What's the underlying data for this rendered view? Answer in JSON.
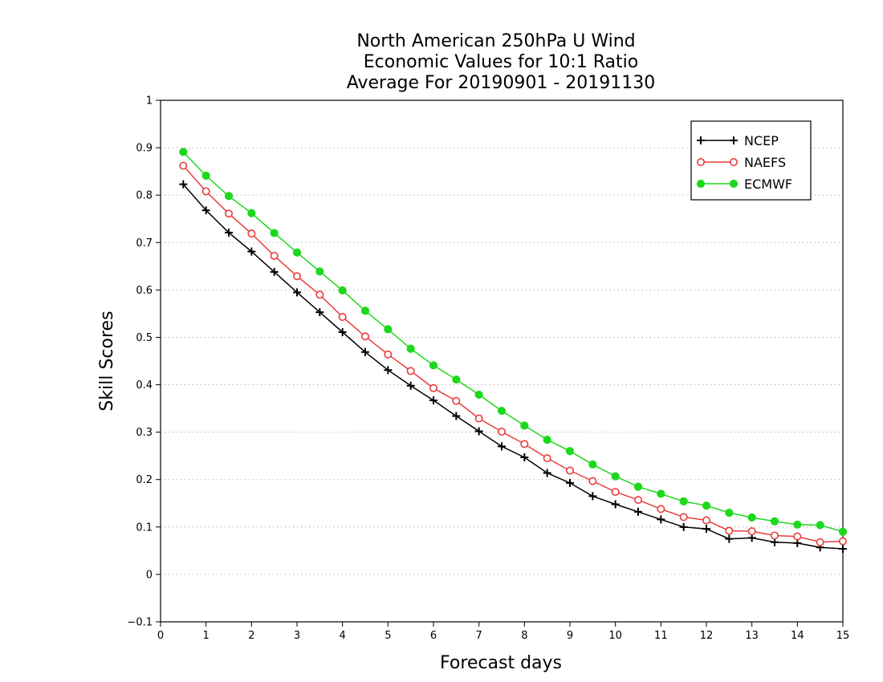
{
  "chart_data": {
    "type": "line",
    "title_lines": [
      "North American 250hPa U Wind",
      "Economic Values for 10:1 Ratio",
      "Average For 20190901 - 20191130"
    ],
    "xlabel": "Forecast days",
    "ylabel": "Skill Scores",
    "xlim": [
      0,
      15
    ],
    "ylim": [
      -0.1,
      1
    ],
    "x_ticks": [
      0,
      1,
      2,
      3,
      4,
      5,
      6,
      7,
      8,
      9,
      10,
      11,
      12,
      13,
      14,
      15
    ],
    "y_ticks": [
      -0.1,
      0,
      0.1,
      0.2,
      0.3,
      0.4,
      0.5,
      0.6,
      0.7,
      0.8,
      0.9,
      1
    ],
    "grid": "horizontal dotted",
    "legend_placement": "top-right",
    "x": [
      0.5,
      1,
      1.5,
      2,
      2.5,
      3,
      3.5,
      4,
      4.5,
      5,
      5.5,
      6,
      6.5,
      7,
      7.5,
      8,
      8.5,
      9,
      9.5,
      10,
      10.5,
      11,
      11.5,
      12,
      12.5,
      13,
      13.5,
      14,
      14.5,
      15
    ],
    "series": [
      {
        "name": "NCEP",
        "color": "#000000",
        "marker": "plus",
        "values": [
          0.823,
          0.768,
          0.721,
          0.681,
          0.638,
          0.595,
          0.553,
          0.511,
          0.469,
          0.431,
          0.398,
          0.367,
          0.334,
          0.302,
          0.27,
          0.247,
          0.214,
          0.193,
          0.165,
          0.148,
          0.132,
          0.116,
          0.1,
          0.096,
          0.075,
          0.077,
          0.068,
          0.066,
          0.057,
          0.054
        ]
      },
      {
        "name": "NAEFS",
        "color": "#e83c3c",
        "marker": "open-circle",
        "values": [
          0.862,
          0.808,
          0.761,
          0.719,
          0.672,
          0.629,
          0.59,
          0.543,
          0.502,
          0.464,
          0.429,
          0.393,
          0.366,
          0.329,
          0.301,
          0.275,
          0.245,
          0.219,
          0.197,
          0.174,
          0.157,
          0.138,
          0.121,
          0.114,
          0.092,
          0.091,
          0.082,
          0.08,
          0.068,
          0.07
        ]
      },
      {
        "name": "ECMWF",
        "color": "#1ed81e",
        "marker": "filled-circle",
        "values": [
          0.891,
          0.841,
          0.798,
          0.762,
          0.72,
          0.679,
          0.639,
          0.599,
          0.556,
          0.517,
          0.476,
          0.441,
          0.411,
          0.379,
          0.345,
          0.314,
          0.284,
          0.26,
          0.232,
          0.207,
          0.185,
          0.17,
          0.154,
          0.145,
          0.13,
          0.12,
          0.112,
          0.105,
          0.104,
          0.09
        ]
      }
    ]
  }
}
